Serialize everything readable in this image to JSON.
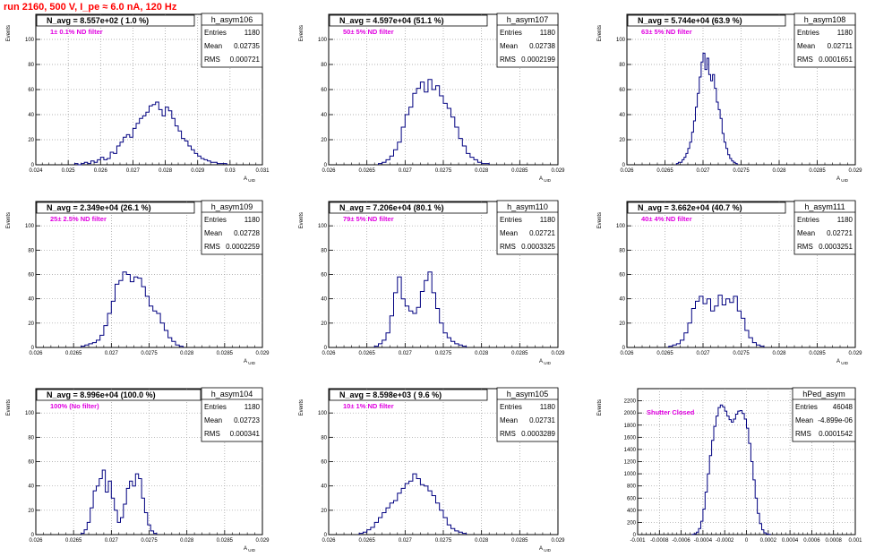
{
  "title": "run 2160,   500 V, I_pe ≈ 6.0 nA, 120 Hz",
  "chart_data": [
    {
      "type": "histogram",
      "name": "h_asym106",
      "stats": {
        "Entries": "1180",
        "Mean": "0.02735",
        "RMS": "0.000721"
      },
      "navg": "N_avg = 8.557e+02 ( 1.0 %)",
      "label": "1± 0.1% ND filter",
      "xlabel": "A_UID",
      "ylabel": "Events",
      "xlim": [
        0.024,
        0.031
      ],
      "ylim": [
        0,
        120
      ],
      "xticks": [
        0.024,
        0.025,
        0.026,
        0.027,
        0.028,
        0.029,
        0.03,
        0.031
      ],
      "xtick_labels": [
        "0.024",
        "0.025",
        "0.026",
        "0.027",
        "0.028",
        "0.029",
        "0.03",
        "0.031"
      ],
      "yticks": [
        0,
        20,
        40,
        60,
        80,
        100
      ],
      "bins": {
        "x0": 0.0252,
        "width": 0.0001,
        "counts": [
          1,
          0,
          1,
          2,
          1,
          3,
          2,
          4,
          6,
          4,
          5,
          10,
          9,
          15,
          18,
          22,
          24,
          22,
          29,
          33,
          37,
          39,
          42,
          47,
          48,
          50,
          44,
          39,
          46,
          43,
          37,
          31,
          27,
          21,
          19,
          15,
          12,
          9,
          7,
          5,
          4,
          3,
          2,
          2,
          1,
          1,
          1
        ]
      }
    },
    {
      "type": "histogram",
      "name": "h_asym107",
      "stats": {
        "Entries": "1180",
        "Mean": "0.02738",
        "RMS": "0.0002199"
      },
      "navg": "N_avg = 4.597e+04 (51.1 %)",
      "label": "50± 5% ND filter",
      "xlabel": "A_UID",
      "ylabel": "Events",
      "xlim": [
        0.026,
        0.029
      ],
      "ylim": [
        0,
        120
      ],
      "xticks": [
        0.026,
        0.0265,
        0.027,
        0.0275,
        0.028,
        0.0285,
        0.029
      ],
      "xtick_labels": [
        "0.026",
        "0.0265",
        "0.027",
        "0.0275",
        "0.028",
        "0.0285",
        "0.029"
      ],
      "yticks": [
        0,
        20,
        40,
        60,
        80,
        100
      ],
      "bins": {
        "x0": 0.02665,
        "width": 5e-05,
        "counts": [
          1,
          2,
          4,
          7,
          12,
          18,
          30,
          40,
          46,
          57,
          61,
          66,
          58,
          68,
          60,
          63,
          55,
          49,
          45,
          38,
          30,
          21,
          15,
          9,
          6,
          4,
          2,
          1,
          1
        ]
      }
    },
    {
      "type": "histogram",
      "name": "h_asym108",
      "stats": {
        "Entries": "1180",
        "Mean": "0.02711",
        "RMS": "0.0001651"
      },
      "navg": "N_avg = 5.744e+04 (63.9 %)",
      "label": "63± 5% ND filter",
      "xlabel": "A_UID",
      "ylabel": "Events",
      "xlim": [
        0.026,
        0.029
      ],
      "ylim": [
        0,
        120
      ],
      "xticks": [
        0.026,
        0.0265,
        0.027,
        0.0275,
        0.028,
        0.0285,
        0.029
      ],
      "xtick_labels": [
        "0.026",
        "0.0265",
        "0.027",
        "0.0275",
        "0.028",
        "0.0285",
        "0.029"
      ],
      "yticks": [
        0,
        20,
        40,
        60,
        80,
        100
      ],
      "bins": {
        "x0": 0.02665,
        "width": 2.5e-05,
        "counts": [
          1,
          2,
          2,
          4,
          6,
          9,
          13,
          18,
          26,
          35,
          46,
          57,
          70,
          82,
          89,
          76,
          85,
          72,
          67,
          72,
          61,
          50,
          44,
          37,
          25,
          18,
          13,
          8,
          5,
          3,
          2,
          1
        ]
      }
    },
    {
      "type": "histogram",
      "name": "h_asym109",
      "stats": {
        "Entries": "1180",
        "Mean": "0.02728",
        "RMS": "0.0002259"
      },
      "navg": "N_avg = 2.349e+04 (26.1 %)",
      "label": "25± 2.5% ND filter",
      "xlabel": "A_UID",
      "ylabel": "Events",
      "xlim": [
        0.026,
        0.029
      ],
      "ylim": [
        0,
        120
      ],
      "xticks": [
        0.026,
        0.0265,
        0.027,
        0.0275,
        0.028,
        0.0285,
        0.029
      ],
      "xtick_labels": [
        "0.026",
        "0.0265",
        "0.027",
        "0.0275",
        "0.028",
        "0.0285",
        "0.029"
      ],
      "yticks": [
        0,
        20,
        40,
        60,
        80,
        100
      ],
      "bins": {
        "x0": 0.0266,
        "width": 5e-05,
        "counts": [
          1,
          2,
          3,
          4,
          6,
          10,
          18,
          28,
          38,
          52,
          55,
          62,
          60,
          54,
          58,
          57,
          50,
          42,
          34,
          30,
          28,
          20,
          14,
          8,
          5,
          2,
          1
        ]
      }
    },
    {
      "type": "histogram",
      "name": "h_asym110",
      "stats": {
        "Entries": "1180",
        "Mean": "0.02721",
        "RMS": "0.0003325"
      },
      "navg": "N_avg = 7.206e+04 (80.1 %)",
      "label": "79± 5% ND filter",
      "xlabel": "A_UID",
      "ylabel": "Events",
      "xlim": [
        0.026,
        0.029
      ],
      "ylim": [
        0,
        120
      ],
      "xticks": [
        0.026,
        0.0265,
        0.027,
        0.0275,
        0.028,
        0.0285,
        0.029
      ],
      "xtick_labels": [
        "0.026",
        "0.0265",
        "0.027",
        "0.0275",
        "0.028",
        "0.0285",
        "0.029"
      ],
      "yticks": [
        0,
        20,
        40,
        60,
        80,
        100
      ],
      "bins": {
        "x0": 0.0266,
        "width": 5e-05,
        "counts": [
          1,
          3,
          6,
          12,
          26,
          45,
          58,
          40,
          34,
          30,
          28,
          33,
          46,
          55,
          62,
          45,
          32,
          20,
          12,
          8,
          5,
          3,
          2,
          1
        ]
      }
    },
    {
      "type": "histogram",
      "name": "h_asym111",
      "stats": {
        "Entries": "1180",
        "Mean": "0.02721",
        "RMS": "0.0003251"
      },
      "navg": "N_avg = 3.662e+04 (40.7 %)",
      "label": "40± 4% ND filter",
      "xlabel": "A_UID",
      "ylabel": "Events",
      "xlim": [
        0.026,
        0.029
      ],
      "ylim": [
        0,
        120
      ],
      "xticks": [
        0.026,
        0.0265,
        0.027,
        0.0275,
        0.028,
        0.0285,
        0.029
      ],
      "xtick_labels": [
        "0.026",
        "0.0265",
        "0.027",
        "0.0275",
        "0.028",
        "0.0285",
        "0.029"
      ],
      "yticks": [
        0,
        20,
        40,
        60,
        80,
        100
      ],
      "bins": {
        "x0": 0.02655,
        "width": 5e-05,
        "counts": [
          1,
          2,
          3,
          6,
          12,
          20,
          32,
          38,
          42,
          36,
          40,
          30,
          34,
          43,
          35,
          40,
          37,
          42,
          30,
          24,
          14,
          8,
          4,
          2,
          1
        ]
      }
    },
    {
      "type": "histogram",
      "name": "h_asym104",
      "stats": {
        "Entries": "1180",
        "Mean": "0.02723",
        "RMS": "0.000341"
      },
      "navg": "N_avg = 8.996e+04 (100.0 %)",
      "label": "100% (No filter)",
      "xlabel": "A_UID",
      "ylabel": "Events",
      "xlim": [
        0.026,
        0.029
      ],
      "ylim": [
        0,
        120
      ],
      "xticks": [
        0.026,
        0.0265,
        0.027,
        0.0275,
        0.028,
        0.0285,
        0.029
      ],
      "xtick_labels": [
        "0.026",
        "0.0265",
        "0.027",
        "0.0275",
        "0.028",
        "0.0285",
        "0.029"
      ],
      "yticks": [
        0,
        20,
        40,
        60,
        80,
        100
      ],
      "bins": {
        "x0": 0.0266,
        "width": 4e-05,
        "counts": [
          1,
          4,
          10,
          22,
          36,
          40,
          46,
          53,
          35,
          44,
          30,
          20,
          10,
          14,
          25,
          38,
          44,
          40,
          50,
          46,
          30,
          18,
          8,
          3,
          1
        ]
      }
    },
    {
      "type": "histogram",
      "name": "h_asym105",
      "stats": {
        "Entries": "1180",
        "Mean": "0.02731",
        "RMS": "0.0003289"
      },
      "navg": "N_avg = 8.598e+03 ( 9.6 %)",
      "label": "10± 1% ND filter",
      "xlabel": "A_UID",
      "ylabel": "Events",
      "xlim": [
        0.026,
        0.029
      ],
      "ylim": [
        0,
        120
      ],
      "xticks": [
        0.026,
        0.0265,
        0.027,
        0.0275,
        0.028,
        0.0285,
        0.029
      ],
      "xtick_labels": [
        "0.026",
        "0.0265",
        "0.027",
        "0.0275",
        "0.028",
        "0.0285",
        "0.029"
      ],
      "yticks": [
        0,
        20,
        40,
        60,
        80,
        100
      ],
      "bins": {
        "x0": 0.0264,
        "width": 5e-05,
        "counts": [
          1,
          2,
          4,
          6,
          10,
          14,
          18,
          22,
          26,
          28,
          34,
          38,
          42,
          44,
          50,
          46,
          41,
          40,
          36,
          32,
          26,
          20,
          14,
          8,
          5,
          3,
          2,
          1
        ]
      }
    },
    {
      "type": "histogram",
      "name": "hPed_asym",
      "stats": {
        "Entries": "46048",
        "Mean": "-4.899e-06",
        "RMS": "0.0001542"
      },
      "label": "Shutter Closed",
      "xlabel": "",
      "ylabel": "Events",
      "xlim": [
        -0.001,
        0.001
      ],
      "ylim": [
        0,
        2400
      ],
      "xticks": [
        -0.001,
        -0.0008,
        -0.0006,
        -0.0004,
        -0.0002,
        0,
        0.0002,
        0.0004,
        0.0006,
        0.0008,
        0.001
      ],
      "xtick_labels": [
        "-0.001",
        "-0.0008",
        "-0.0006",
        "-0.0004",
        "-0.0002",
        "0",
        "0.0002",
        "0.0004",
        "0.0006",
        "0.0008",
        "0.001"
      ],
      "yticks": [
        0,
        200,
        400,
        600,
        800,
        1000,
        1200,
        1400,
        1600,
        1800,
        2000,
        2200
      ],
      "bins": {
        "x0": -0.0005,
        "width": 2e-05,
        "counts": [
          5,
          15,
          40,
          100,
          220,
          420,
          700,
          1000,
          1300,
          1550,
          1780,
          1950,
          2090,
          2130,
          2100,
          2030,
          1950,
          1890,
          1850,
          1900,
          1980,
          2030,
          2040,
          1990,
          1900,
          1750,
          1500,
          1200,
          900,
          600,
          350,
          180,
          80,
          30,
          10,
          5
        ]
      }
    }
  ]
}
